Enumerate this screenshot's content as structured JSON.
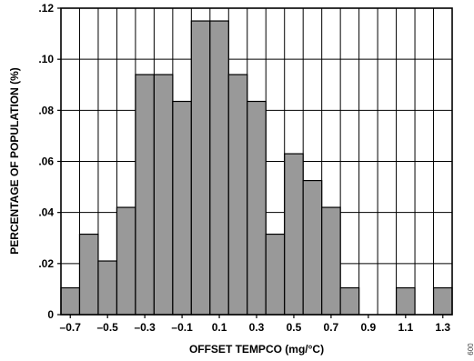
{
  "chart_data": {
    "type": "bar",
    "title": "",
    "xlabel": "OFFSET TEMPCO (mg/°C)",
    "ylabel": "PERCENTAGE OF POPULATION (%)",
    "figure_id": "009",
    "x_bin_width": 0.1,
    "xlim": [
      -0.75,
      1.35
    ],
    "ylim": [
      0,
      0.12
    ],
    "grid": true,
    "legend": "none",
    "x_tick_values": [
      -0.7,
      -0.5,
      -0.3,
      -0.1,
      0.1,
      0.3,
      0.5,
      0.7,
      0.9,
      1.1,
      1.3
    ],
    "x_tick_labels": [
      "–0.7",
      "–0.5",
      "–0.3",
      "–0.1",
      "0.1",
      "0.3",
      "0.5",
      "0.7",
      "0.9",
      "1.1",
      "1.3"
    ],
    "y_tick_values": [
      0,
      0.02,
      0.04,
      0.06,
      0.08,
      0.1,
      0.12
    ],
    "y_tick_labels": [
      "0",
      ".02",
      ".04",
      ".06",
      ".08",
      ".10",
      ".12"
    ],
    "series": [
      {
        "x": [
          -0.7,
          -0.6,
          -0.5,
          -0.4,
          -0.3,
          -0.2,
          -0.1,
          0.0,
          0.1,
          0.2,
          0.3,
          0.4,
          0.5,
          0.6,
          0.7,
          0.8,
          0.9,
          1.0,
          1.1,
          1.2,
          1.3
        ],
        "values": [
          0.0105,
          0.0315,
          0.021,
          0.042,
          0.094,
          0.094,
          0.0835,
          0.115,
          0.115,
          0.094,
          0.0835,
          0.0315,
          0.063,
          0.0525,
          0.042,
          0.0105,
          0,
          0,
          0.0105,
          0,
          0.0105
        ]
      }
    ],
    "colors": {
      "bar_fill": "#999999",
      "bar_stroke": "#000000",
      "grid": "#000000",
      "background": "#ffffff"
    }
  }
}
